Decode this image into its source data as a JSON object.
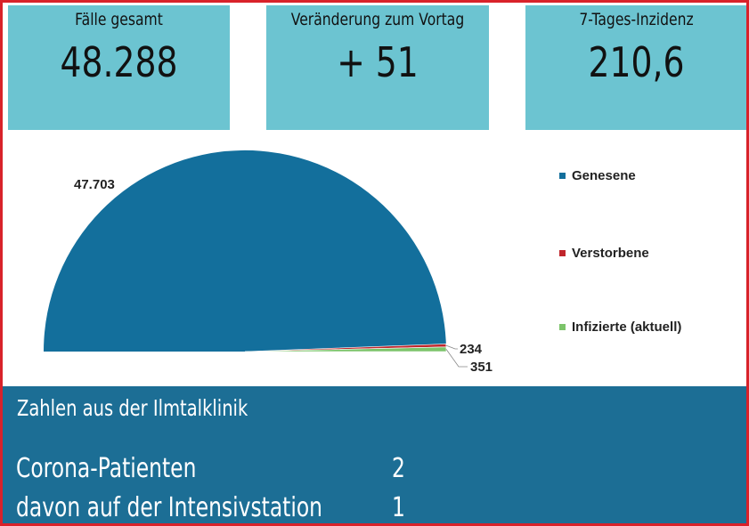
{
  "stats": {
    "total": {
      "label": "Fälle gesamt",
      "value": "48.288"
    },
    "change": {
      "label": "Veränderung zum Vortag",
      "value": "+ 51"
    },
    "incidence": {
      "label": "7-Tages-Inzidenz",
      "value": "210,6"
    }
  },
  "chart_data": {
    "type": "pie",
    "style": "half-pie",
    "legend_position": "right",
    "slices": [
      {
        "label": "Genesene",
        "value": 47703,
        "data_label": "47.703",
        "color": "#136f9c"
      },
      {
        "label": "Verstorbene",
        "value": 234,
        "data_label": "234",
        "color": "#c0262c"
      },
      {
        "label": "Infizierte (aktuell)",
        "value": 351,
        "data_label": "351",
        "color": "#7cc46a"
      }
    ]
  },
  "clinic": {
    "title": "Zahlen aus der Ilmtalklinik",
    "rows": [
      {
        "label": "Corona-Patienten",
        "value": "2"
      },
      {
        "label": "davon auf der Intensivstation",
        "value": "1"
      }
    ]
  },
  "colors": {
    "card_bg": "#6cc4d1",
    "panel_bg": "#1c6e95",
    "frame_border": "#d9222a"
  }
}
